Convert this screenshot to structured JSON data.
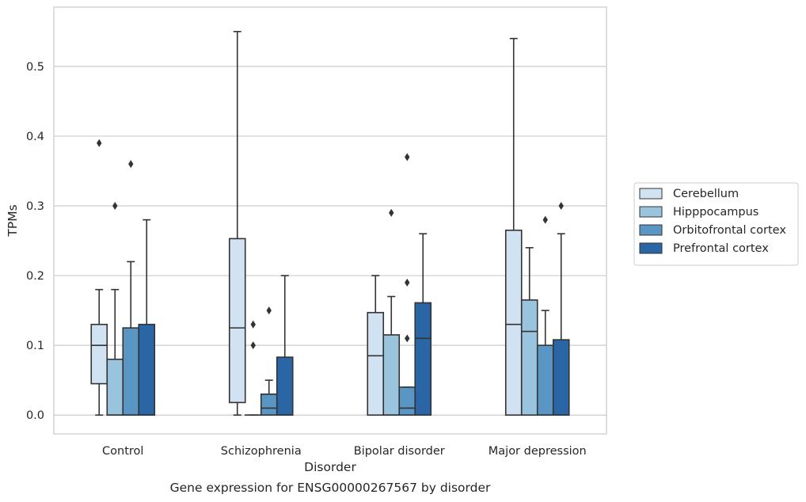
{
  "chart_data": {
    "type": "box",
    "title": "",
    "caption": "Gene expression for ENSG00000267567 by disorder",
    "xlabel": "Disorder",
    "ylabel": "TPMs",
    "ylim": [
      -0.027,
      0.585
    ],
    "yticks": [
      "0.0",
      "0.1",
      "0.2",
      "0.3",
      "0.4",
      "0.5"
    ],
    "grid": true,
    "legend_position": "right",
    "categories": [
      "Control",
      "Schizophrenia",
      "Bipolar disorder",
      "Major depression"
    ],
    "series": [
      {
        "name": "Cerebellum",
        "color": "#d1e2f2",
        "boxes": [
          {
            "low": 0.0,
            "q1": 0.045,
            "median": 0.1,
            "q3": 0.13,
            "high": 0.18,
            "outliers": [
              0.39
            ]
          },
          {
            "low": 0.0,
            "q1": 0.018,
            "median": 0.125,
            "q3": 0.253,
            "high": 0.55,
            "outliers": []
          },
          {
            "low": 0.0,
            "q1": 0.0,
            "median": 0.085,
            "q3": 0.147,
            "high": 0.2,
            "outliers": []
          },
          {
            "low": 0.0,
            "q1": 0.0,
            "median": 0.13,
            "q3": 0.265,
            "high": 0.54,
            "outliers": []
          }
        ]
      },
      {
        "name": "Hipppocampus",
        "color": "#9ac4de",
        "boxes": [
          {
            "low": 0.0,
            "q1": 0.0,
            "median": 0.0,
            "q3": 0.08,
            "high": 0.18,
            "outliers": [
              0.3
            ]
          },
          {
            "low": 0.0,
            "q1": 0.0,
            "median": 0.0,
            "q3": 0.0,
            "high": 0.0,
            "outliers": [
              0.1,
              0.13
            ]
          },
          {
            "low": 0.0,
            "q1": 0.0,
            "median": 0.0,
            "q3": 0.115,
            "high": 0.17,
            "outliers": [
              0.29
            ]
          },
          {
            "low": 0.0,
            "q1": 0.0,
            "median": 0.12,
            "q3": 0.165,
            "high": 0.24,
            "outliers": []
          }
        ]
      },
      {
        "name": "Orbitofrontal cortex",
        "color": "#5a96c3",
        "boxes": [
          {
            "low": 0.0,
            "q1": 0.0,
            "median": 0.0,
            "q3": 0.125,
            "high": 0.22,
            "outliers": [
              0.36
            ]
          },
          {
            "low": 0.0,
            "q1": 0.0,
            "median": 0.01,
            "q3": 0.03,
            "high": 0.05,
            "outliers": [
              0.15
            ]
          },
          {
            "low": 0.0,
            "q1": 0.0,
            "median": 0.01,
            "q3": 0.04,
            "high": 0.04,
            "outliers": [
              0.11,
              0.19,
              0.37
            ]
          },
          {
            "low": 0.0,
            "q1": 0.0,
            "median": 0.0,
            "q3": 0.1,
            "high": 0.15,
            "outliers": [
              0.28
            ]
          }
        ]
      },
      {
        "name": "Prefrontal cortex",
        "color": "#2a66a5",
        "boxes": [
          {
            "low": 0.0,
            "q1": 0.0,
            "median": 0.0,
            "q3": 0.13,
            "high": 0.28,
            "outliers": []
          },
          {
            "low": 0.0,
            "q1": 0.0,
            "median": 0.0,
            "q3": 0.083,
            "high": 0.2,
            "outliers": []
          },
          {
            "low": 0.0,
            "q1": 0.0,
            "median": 0.11,
            "q3": 0.161,
            "high": 0.26,
            "outliers": []
          },
          {
            "low": 0.0,
            "q1": 0.0,
            "median": 0.0,
            "q3": 0.108,
            "high": 0.26,
            "outliers": [
              0.3
            ]
          }
        ]
      }
    ]
  }
}
